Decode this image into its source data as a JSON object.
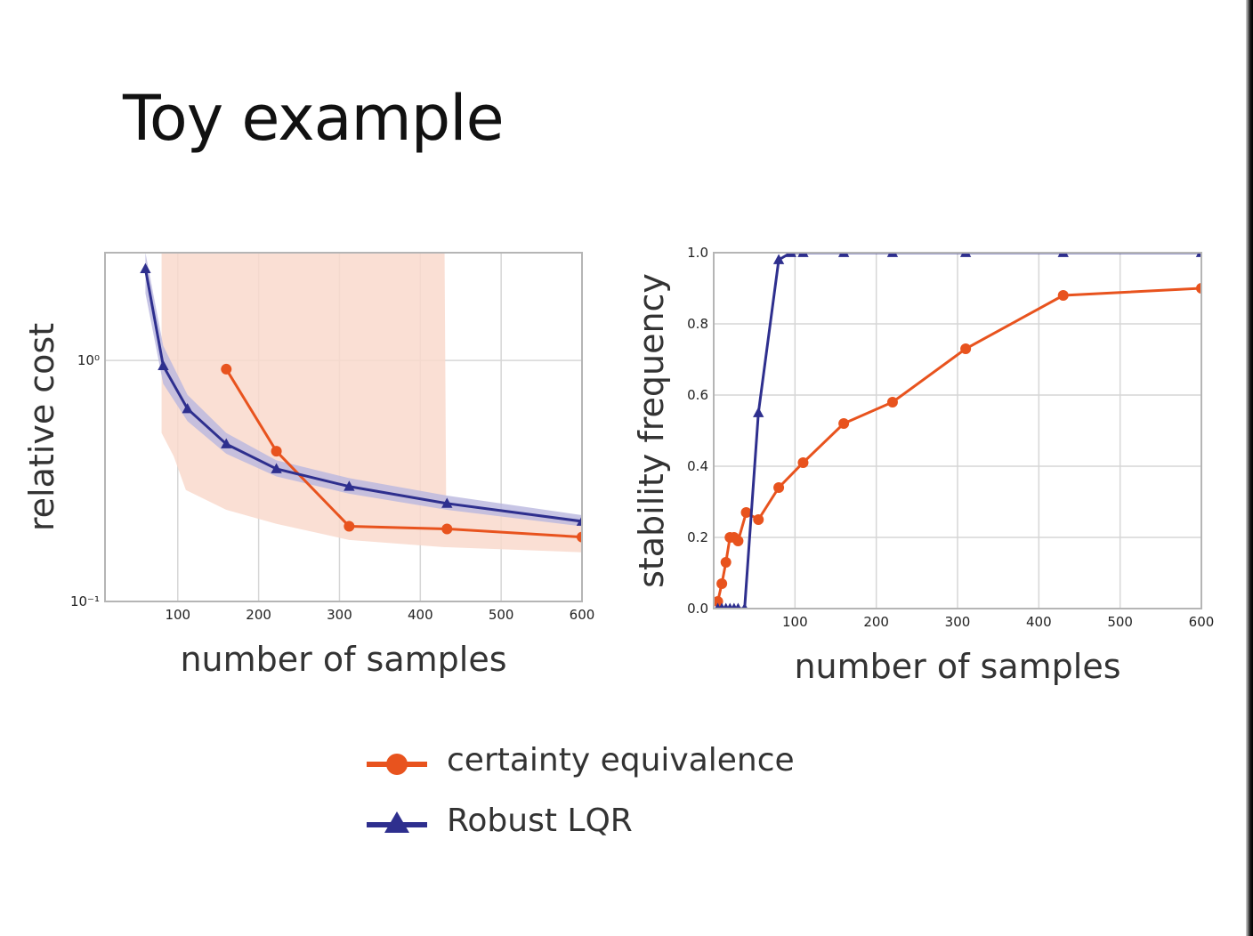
{
  "slide": {
    "title": "Toy example"
  },
  "colors": {
    "ce": "#e8531e",
    "robust": "#2e2f8e",
    "ce_band": "#f9d9cc",
    "robust_band": "#b9b7de",
    "grid": "#d6d6d6"
  },
  "legend": {
    "ce_label": "certainty equivalence",
    "robust_label": "Robust LQR",
    "ce_marker": "circle",
    "robust_marker": "triangle"
  },
  "chart_data": [
    {
      "type": "line",
      "xlabel": "number of samples",
      "ylabel": "relative cost",
      "xlim": [
        10,
        600
      ],
      "ylim": [
        0.1,
        2.8
      ],
      "yscale": "log",
      "grid": true,
      "xticks": [
        100,
        200,
        300,
        400,
        500,
        600
      ],
      "xtick_labels": [
        "100",
        "200",
        "300",
        "400",
        "500",
        "600"
      ],
      "yticks": [
        0.1,
        1
      ],
      "ytick_labels": [
        "10⁻¹",
        "10⁰"
      ],
      "series": [
        {
          "key": "ce",
          "x": [
            160,
            222,
            312,
            433,
            600
          ],
          "y": [
            0.92,
            0.42,
            0.205,
            0.2,
            0.185
          ],
          "band_x": [
            80,
            95,
            110,
            160,
            222,
            312,
            430,
            432,
            600
          ],
          "band_lower": [
            0.5,
            0.4,
            0.29,
            0.24,
            0.21,
            0.18,
            0.168,
            0.168,
            0.16
          ],
          "band_upper": [
            2.8,
            2.8,
            2.8,
            2.8,
            2.8,
            2.8,
            2.8,
            0.25,
            0.215
          ]
        },
        {
          "key": "robust",
          "x": [
            60,
            82,
            112,
            160,
            222,
            312,
            433,
            600
          ],
          "y": [
            2.4,
            0.95,
            0.63,
            0.45,
            0.355,
            0.3,
            0.255,
            0.215
          ],
          "band_x": [
            60,
            82,
            112,
            160,
            222,
            312,
            433,
            600
          ],
          "band_lower": [
            1.9,
            0.8,
            0.56,
            0.41,
            0.33,
            0.28,
            0.24,
            0.205
          ],
          "band_upper": [
            2.8,
            1.15,
            0.72,
            0.5,
            0.385,
            0.325,
            0.275,
            0.228
          ]
        }
      ]
    },
    {
      "type": "line",
      "xlabel": "number of samples",
      "ylabel": "stability frequency",
      "xlim": [
        0,
        600
      ],
      "ylim": [
        0,
        1.0
      ],
      "grid": true,
      "xticks": [
        100,
        200,
        300,
        400,
        500,
        600
      ],
      "xtick_labels": [
        "100",
        "200",
        "300",
        "400",
        "500",
        "600"
      ],
      "yticks": [
        0,
        0.2,
        0.4,
        0.6,
        0.8,
        1.0
      ],
      "ytick_labels": [
        "0.0",
        "0.2",
        "0.4",
        "0.6",
        "0.8",
        "1.0"
      ],
      "series": [
        {
          "key": "ce",
          "x": [
            5,
            10,
            15,
            20,
            25,
            30,
            40,
            55,
            80,
            110,
            160,
            220,
            310,
            430,
            600
          ],
          "y": [
            0.02,
            0.07,
            0.13,
            0.2,
            0.2,
            0.19,
            0.27,
            0.25,
            0.34,
            0.41,
            0.52,
            0.58,
            0.73,
            0.88,
            0.9
          ]
        },
        {
          "key": "robust",
          "x": [
            5,
            10,
            15,
            20,
            25,
            30,
            38,
            55,
            80,
            95,
            110,
            160,
            220,
            310,
            430,
            600
          ],
          "y": [
            0,
            0,
            0,
            0,
            0,
            0,
            0,
            0.55,
            0.98,
            1.0,
            1.0,
            1.0,
            1.0,
            1.0,
            1.0,
            1.0
          ]
        }
      ]
    }
  ]
}
